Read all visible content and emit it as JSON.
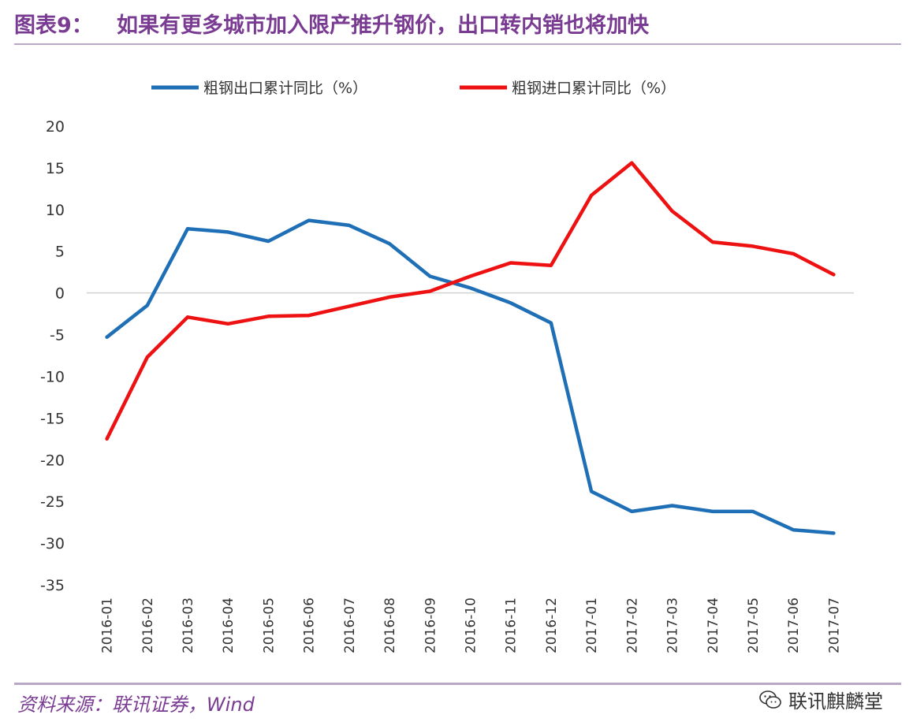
{
  "header": {
    "prefix": "图表9：",
    "title": "如果有更多城市加入限产推升钢价，出口转内销也将加快"
  },
  "footer": {
    "source": "资料来源：联讯证券，Wind",
    "watermark": "联讯麒麟堂"
  },
  "colors": {
    "accent": "#7a3b92",
    "export_series": "#1f6fb6",
    "import_series": "#ee1111"
  },
  "chart_data": {
    "type": "line",
    "title": "",
    "xlabel": "",
    "ylabel": "",
    "ylim": [
      -35,
      20
    ],
    "yticks": [
      "20",
      "15",
      "10",
      "5",
      "0",
      "-5",
      "-10",
      "-15",
      "-20",
      "-25",
      "-30",
      "-35"
    ],
    "categories": [
      "2016-01",
      "2016-02",
      "2016-03",
      "2016-04",
      "2016-05",
      "2016-06",
      "2016-07",
      "2016-08",
      "2016-09",
      "2016-10",
      "2016-11",
      "2016-12",
      "2017-01",
      "2017-02",
      "2017-03",
      "2017-04",
      "2017-05",
      "2017-06",
      "2017-07"
    ],
    "legend_position": "top",
    "series": [
      {
        "name": "粗钢出口累计同比（%）",
        "color": "#1f6fb6",
        "values": [
          -5.3,
          -1.5,
          7.7,
          7.3,
          6.2,
          8.7,
          8.1,
          5.9,
          2.0,
          0.6,
          -1.2,
          -3.6,
          -23.8,
          -26.2,
          -25.5,
          -26.2,
          -26.2,
          -28.4,
          -28.8
        ]
      },
      {
        "name": "粗钢进口累计同比（%）",
        "color": "#ee1111",
        "values": [
          -17.5,
          -7.7,
          -2.9,
          -3.7,
          -2.8,
          -2.7,
          -1.6,
          -0.5,
          0.2,
          2.0,
          3.6,
          3.3,
          11.7,
          15.6,
          9.8,
          6.1,
          5.6,
          4.7,
          2.2
        ]
      }
    ]
  }
}
